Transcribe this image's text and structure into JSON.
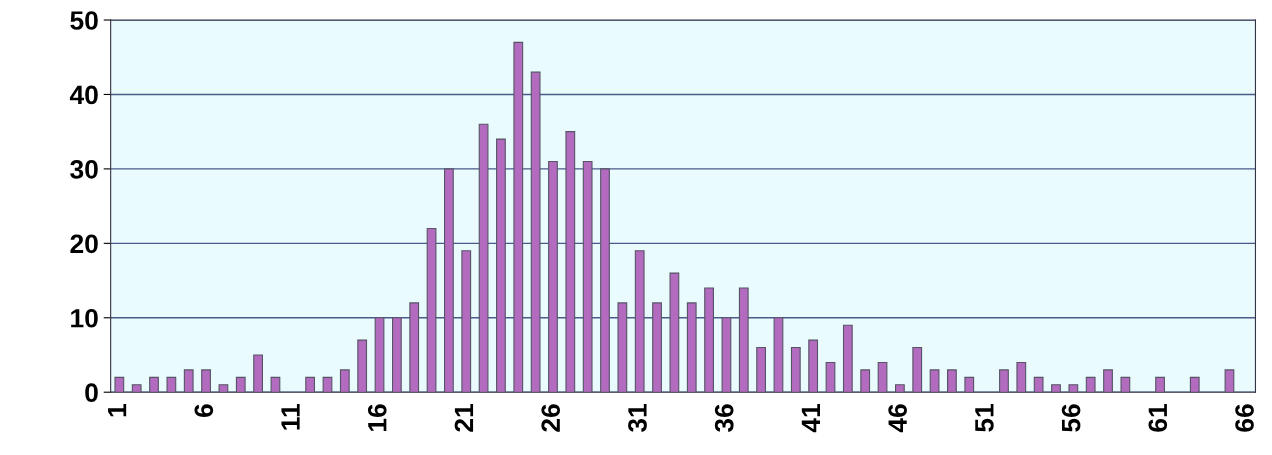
{
  "chart_data": {
    "type": "bar",
    "categories": [
      "1",
      null,
      null,
      null,
      null,
      "6",
      null,
      null,
      null,
      null,
      "11",
      null,
      null,
      null,
      null,
      "16",
      null,
      null,
      null,
      null,
      "21",
      null,
      null,
      null,
      null,
      "26",
      null,
      null,
      null,
      null,
      "31",
      null,
      null,
      null,
      null,
      "36",
      null,
      null,
      null,
      null,
      "41",
      null,
      null,
      null,
      null,
      "46",
      null,
      null,
      null,
      null,
      "51",
      null,
      null,
      null,
      null,
      "56",
      null,
      null,
      null,
      null,
      "61",
      null,
      null,
      null,
      null,
      "66"
    ],
    "values": [
      2,
      1,
      2,
      2,
      3,
      3,
      1,
      2,
      5,
      2,
      0,
      2,
      2,
      3,
      7,
      10,
      10,
      12,
      22,
      30,
      19,
      36,
      34,
      47,
      43,
      31,
      35,
      31,
      30,
      12,
      19,
      12,
      16,
      12,
      14,
      10,
      14,
      6,
      10,
      6,
      7,
      4,
      9,
      3,
      4,
      1,
      6,
      3,
      3,
      2,
      0,
      3,
      4,
      2,
      1,
      1,
      2,
      3,
      2,
      0,
      2,
      0,
      2,
      0,
      3,
      0
    ],
    "color": "#b36bbf",
    "ylim": [
      0,
      50
    ],
    "yticks": [
      0,
      10,
      20,
      30,
      40,
      50
    ],
    "grid": "y"
  }
}
